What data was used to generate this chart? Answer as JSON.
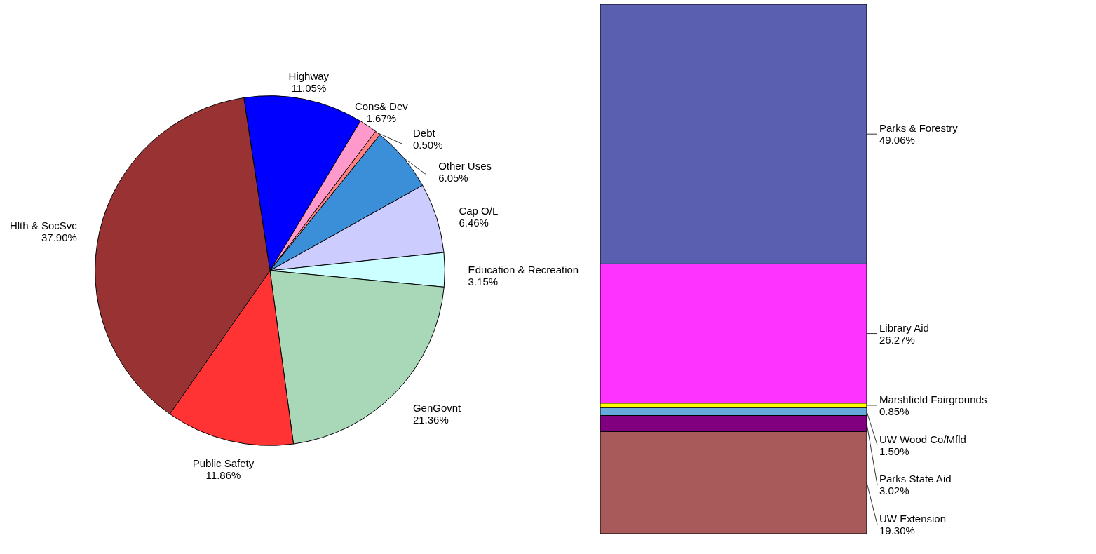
{
  "chart_data": [
    {
      "type": "pie",
      "categories": [
        "Highway",
        "Cons& Dev",
        "Debt",
        "Other Uses",
        "Cap O/L",
        "Education & Recreation",
        "GenGovnt",
        "Public Safety",
        "Hlth & SocSvc"
      ],
      "values": [
        11.05,
        1.67,
        0.5,
        6.05,
        6.46,
        3.15,
        21.36,
        11.86,
        37.9
      ],
      "value_labels": [
        "11.05%",
        "1.67%",
        "0.50%",
        "6.05%",
        "6.46%",
        "3.15%",
        "21.36%",
        "11.86%",
        "37.90%"
      ],
      "colors": [
        "#0000ff",
        "#ff99cc",
        "#ff8080",
        "#3a8fd8",
        "#ccccff",
        "#ccffff",
        "#a8d8b8",
        "#ff3333",
        "#993333"
      ]
    },
    {
      "type": "bar",
      "stacked": true,
      "categories": [
        null
      ],
      "series": [
        {
          "name": "UW Extension",
          "color": "#a85a5a",
          "values": [
            19.3
          ],
          "value_labels": [
            "19.30%"
          ]
        },
        {
          "name": "Parks State Aid",
          "color": "#800080",
          "values": [
            3.02
          ],
          "value_labels": [
            "3.02%"
          ]
        },
        {
          "name": "UW Wood Co/Mfld",
          "color": "#66aadd",
          "values": [
            1.5
          ],
          "value_labels": [
            "1.50%"
          ]
        },
        {
          "name": "Marshfield Fairgrounds",
          "color": "#ffff00",
          "values": [
            0.85
          ],
          "value_labels": [
            "0.85%"
          ]
        },
        {
          "name": "Library Aid",
          "color": "#ff33ff",
          "values": [
            26.27
          ],
          "value_labels": [
            "26.27%"
          ]
        },
        {
          "name": "Parks & Forestry",
          "color": "#5a5fb0",
          "values": [
            49.06
          ],
          "value_labels": [
            "49.06%"
          ]
        }
      ]
    }
  ]
}
